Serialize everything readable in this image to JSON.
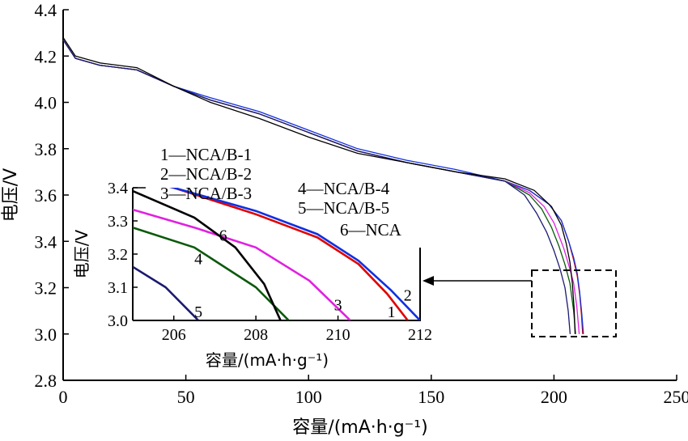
{
  "chart_data": {
    "type": "line",
    "xlabel": "容量/(mA·h·g⁻¹)",
    "ylabel": "电压/V",
    "xlim": [
      0,
      250
    ],
    "ylim": [
      2.8,
      4.4
    ],
    "x_ticks": [
      "0",
      "50",
      "100",
      "150",
      "200",
      "250"
    ],
    "y_ticks": [
      "2.8",
      "3.0",
      "3.2",
      "3.4",
      "3.6",
      "3.8",
      "4.0",
      "4.2",
      "4.4"
    ],
    "grid": false,
    "legend": [
      "1—NCA/B-1",
      "2—NCA/B-2",
      "3—NCA/B-3",
      "4—NCA/B-4",
      "5—NCA/B-5",
      "6—NCA"
    ],
    "series": [
      {
        "label": "1",
        "color": "#e00000",
        "x": [
          0,
          5,
          15,
          30,
          45,
          60,
          80,
          100,
          120,
          140,
          160,
          180,
          190,
          198,
          203,
          206,
          208,
          209.5,
          210.5,
          211.2,
          211.7
        ],
        "y": [
          4.27,
          4.19,
          4.16,
          4.14,
          4.07,
          4.01,
          3.95,
          3.87,
          3.79,
          3.74,
          3.7,
          3.66,
          3.62,
          3.56,
          3.49,
          3.4,
          3.32,
          3.25,
          3.17,
          3.08,
          3.0
        ]
      },
      {
        "label": "2",
        "color": "#1030e0",
        "x": [
          0,
          5,
          15,
          30,
          45,
          60,
          80,
          100,
          120,
          140,
          160,
          180,
          190,
          198,
          203,
          206,
          208,
          209.5,
          210.5,
          211.3,
          212.0
        ],
        "y": [
          4.27,
          4.19,
          4.16,
          4.14,
          4.07,
          4.02,
          3.96,
          3.88,
          3.8,
          3.75,
          3.71,
          3.66,
          3.62,
          3.56,
          3.49,
          3.4,
          3.33,
          3.26,
          3.18,
          3.09,
          3.0
        ]
      },
      {
        "label": "3",
        "color": "#e020e0",
        "x": [
          0,
          5,
          15,
          30,
          45,
          60,
          80,
          100,
          120,
          140,
          160,
          180,
          190,
          196,
          200,
          204,
          206.5,
          208,
          209.3,
          210.3
        ],
        "y": [
          4.27,
          4.19,
          4.16,
          4.14,
          4.07,
          4.01,
          3.95,
          3.87,
          3.79,
          3.74,
          3.7,
          3.66,
          3.61,
          3.55,
          3.48,
          3.37,
          3.28,
          3.22,
          3.12,
          3.0
        ]
      },
      {
        "label": "4",
        "color": "#0a5a0a",
        "x": [
          0,
          5,
          15,
          30,
          45,
          60,
          80,
          100,
          120,
          140,
          160,
          180,
          190,
          195,
          199,
          202,
          204.5,
          206.5,
          208,
          208.8
        ],
        "y": [
          4.27,
          4.19,
          4.16,
          4.14,
          4.07,
          4.01,
          3.95,
          3.87,
          3.79,
          3.74,
          3.7,
          3.66,
          3.6,
          3.54,
          3.46,
          3.38,
          3.3,
          3.22,
          3.1,
          3.0
        ]
      },
      {
        "label": "5",
        "color": "#1a1a70",
        "x": [
          0,
          5,
          15,
          30,
          45,
          60,
          80,
          100,
          120,
          140,
          160,
          180,
          188,
          193,
          197,
          200,
          202.5,
          204.5,
          205.8,
          206.6
        ],
        "y": [
          4.27,
          4.19,
          4.16,
          4.14,
          4.07,
          4.01,
          3.95,
          3.87,
          3.79,
          3.74,
          3.7,
          3.66,
          3.6,
          3.52,
          3.44,
          3.36,
          3.28,
          3.2,
          3.1,
          3.0
        ]
      },
      {
        "label": "6",
        "color": "#000000",
        "x": [
          0,
          5,
          15,
          30,
          45,
          60,
          80,
          100,
          120,
          140,
          160,
          180,
          192,
          199,
          203,
          205,
          206.5,
          207.5,
          208.2,
          208.6
        ],
        "y": [
          4.28,
          4.2,
          4.17,
          4.15,
          4.07,
          4.0,
          3.93,
          3.85,
          3.78,
          3.74,
          3.7,
          3.67,
          3.62,
          3.55,
          3.47,
          3.39,
          3.31,
          3.22,
          3.11,
          3.0
        ]
      }
    ],
    "inset": {
      "xlabel": "容量/(mA·h·g⁻¹)",
      "ylabel": "电压/V",
      "xlim": [
        205,
        212
      ],
      "ylim": [
        3.0,
        3.4
      ],
      "x_ticks": [
        "206",
        "208",
        "210",
        "212"
      ],
      "y_ticks": [
        "3.0",
        "3.1",
        "3.2",
        "3.3",
        "3.4"
      ],
      "curve_labels": [
        {
          "text": "1",
          "x": 211.3,
          "y": 3.01
        },
        {
          "text": "2",
          "x": 211.7,
          "y": 3.06
        },
        {
          "text": "3",
          "x": 210.0,
          "y": 3.03
        },
        {
          "text": "4",
          "x": 206.6,
          "y": 3.17
        },
        {
          "text": "5",
          "x": 206.6,
          "y": 3.01
        },
        {
          "text": "6",
          "x": 207.2,
          "y": 3.24
        }
      ]
    }
  }
}
